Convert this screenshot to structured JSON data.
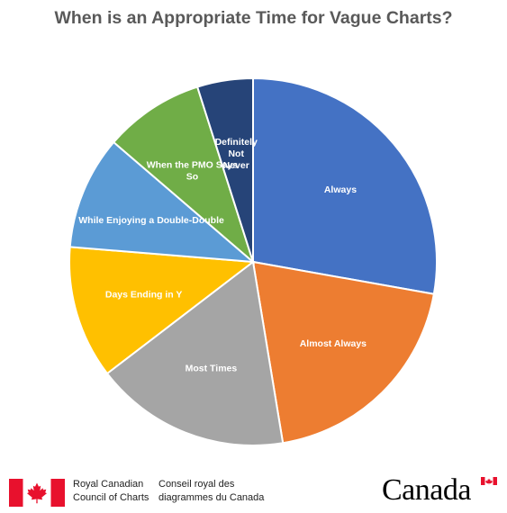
{
  "chart_data": {
    "type": "pie",
    "title": "When is an Appropriate Time for Vague Charts?",
    "categories": [
      "Always",
      "Almost Always",
      "Most Times",
      "Days Ending in Y",
      "While Enjoying a Double-Double",
      "When the PMO Says So",
      "Definitely Not Never"
    ],
    "values": [
      27.8,
      19.6,
      17.2,
      11.7,
      10.0,
      8.8,
      4.9
    ],
    "colors": [
      "#4472C4",
      "#ED7D31",
      "#A5A5A5",
      "#FFC000",
      "#5B9BD5",
      "#70AD47",
      "#264478"
    ],
    "label_lines": [
      [
        "Always"
      ],
      [
        "Almost Always"
      ],
      [
        "Most Times"
      ],
      [
        "Days Ending in Y"
      ],
      [
        "While Enjoying a Double-Double"
      ],
      [
        "When the PMO Says",
        "So"
      ],
      [
        "Definitely",
        "Not",
        "Never"
      ]
    ],
    "start_angle_deg": 0,
    "direction": "clockwise",
    "legend": "none",
    "data_labels": "category names inside slices"
  },
  "footer": {
    "org_en_line1": "Royal Canadian",
    "org_en_line2": "Council of Charts",
    "org_fr_line1": "Conseil royal des",
    "org_fr_line2": "diagrammes du Canada",
    "wordmark": "Canada"
  },
  "flag_colors": {
    "red": "#E8112D",
    "white": "#FFFFFF"
  }
}
